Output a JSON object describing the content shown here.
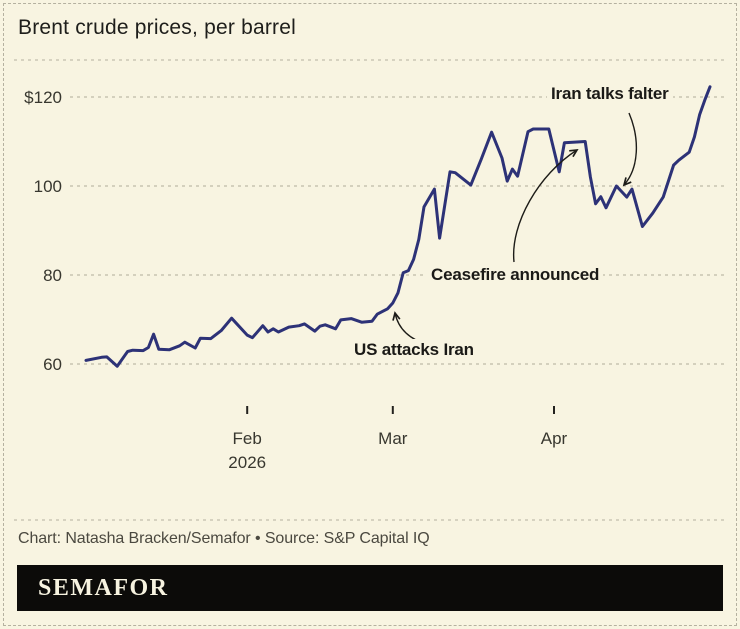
{
  "header": {
    "title": "Brent crude prices, per barrel"
  },
  "chart_data": {
    "type": "line",
    "title": "Brent crude prices, per barrel",
    "unit": "US dollars per barrel",
    "line_color": "#2d3277",
    "grid_color": "#b0ac99",
    "ylim": [
      55,
      127
    ],
    "y_ticks": [
      {
        "label": "$120",
        "value": 120
      },
      {
        "label": "100",
        "value": 100
      },
      {
        "label": "80",
        "value": 80
      },
      {
        "label": "60",
        "value": 60
      }
    ],
    "x_ticks": [
      {
        "label": "Feb",
        "sublabel": "2026",
        "day": 31
      },
      {
        "label": "Mar",
        "sublabel": "",
        "day": 59
      },
      {
        "label": "Apr",
        "sublabel": "",
        "day": 90
      }
    ],
    "x_axis_note": "days from Jan 1, 2026",
    "points_day_value": [
      [
        0,
        60.8
      ],
      [
        3,
        61.5
      ],
      [
        4,
        61.6
      ],
      [
        6,
        59.5
      ],
      [
        8,
        62.8
      ],
      [
        9,
        63.1
      ],
      [
        11,
        63.0
      ],
      [
        12,
        63.7
      ],
      [
        13,
        66.7
      ],
      [
        14,
        63.3
      ],
      [
        16,
        63.2
      ],
      [
        18,
        64.1
      ],
      [
        19,
        64.9
      ],
      [
        21,
        63.6
      ],
      [
        22,
        65.8
      ],
      [
        24,
        65.7
      ],
      [
        26,
        67.5
      ],
      [
        28,
        70.3
      ],
      [
        31,
        66.5
      ],
      [
        32,
        65.9
      ],
      [
        34,
        68.6
      ],
      [
        35,
        67.2
      ],
      [
        36,
        67.9
      ],
      [
        37,
        67.2
      ],
      [
        39,
        68.3
      ],
      [
        41,
        68.6
      ],
      [
        42,
        69.0
      ],
      [
        44,
        67.4
      ],
      [
        45,
        68.5
      ],
      [
        46,
        68.8
      ],
      [
        48,
        67.9
      ],
      [
        49,
        69.9
      ],
      [
        51,
        70.2
      ],
      [
        53,
        69.4
      ],
      [
        55,
        69.6
      ],
      [
        56,
        71.2
      ],
      [
        58,
        72.4
      ],
      [
        59,
        73.7
      ],
      [
        60,
        76.0
      ],
      [
        61,
        80.5
      ],
      [
        62,
        81.0
      ],
      [
        63,
        83.5
      ],
      [
        64,
        88.0
      ],
      [
        65,
        95.3
      ],
      [
        67,
        99.3
      ],
      [
        68,
        88.3
      ],
      [
        70,
        103.2
      ],
      [
        71,
        103.0
      ],
      [
        74,
        100.2
      ],
      [
        76,
        106.0
      ],
      [
        78,
        112.1
      ],
      [
        80,
        106.3
      ],
      [
        81,
        101.1
      ],
      [
        82,
        103.8
      ],
      [
        83,
        102.2
      ],
      [
        85,
        112.2
      ],
      [
        86,
        112.8
      ],
      [
        89,
        112.8
      ],
      [
        91,
        103.2
      ],
      [
        92,
        109.7
      ],
      [
        96,
        110.0
      ],
      [
        97,
        102.0
      ],
      [
        98,
        96.0
      ],
      [
        99,
        97.6
      ],
      [
        100,
        95.1
      ],
      [
        102,
        100.0
      ],
      [
        104,
        97.5
      ],
      [
        105,
        99.3
      ],
      [
        107,
        90.9
      ],
      [
        109,
        93.9
      ],
      [
        111,
        97.5
      ],
      [
        113,
        104.7
      ],
      [
        114,
        105.8
      ],
      [
        116,
        107.6
      ],
      [
        117,
        111.0
      ],
      [
        118,
        116.0
      ],
      [
        119,
        119.3
      ],
      [
        120,
        122.3
      ]
    ],
    "annotations": [
      {
        "label": "US attacks Iran",
        "day": 59,
        "value": 73.7
      },
      {
        "label": "Ceasefire announced",
        "day": 96,
        "value": 110
      },
      {
        "label": "Iran talks falter",
        "day": 102,
        "value": 100
      }
    ]
  },
  "footer": {
    "credit": "Chart: Natasha Bracken/Semafor • Source: S&P Capital IQ",
    "logo": "SEMAFOR"
  },
  "colors": {
    "background": "#f8f4e1",
    "line": "#2d3277",
    "grid": "#b0ac99",
    "text": "#1e1e1b",
    "logo_bar": "#0c0b09"
  }
}
